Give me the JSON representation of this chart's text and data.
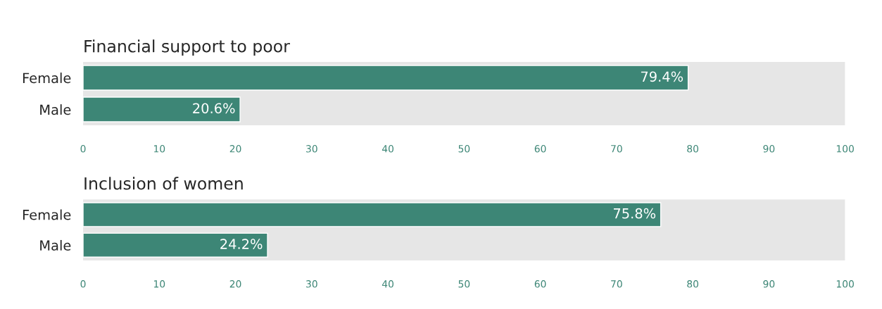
{
  "chart_data": [
    {
      "type": "bar",
      "orientation": "horizontal",
      "title": "Financial support to poor",
      "categories": [
        "Female",
        "Male"
      ],
      "values": [
        79.4,
        20.6
      ],
      "value_labels": [
        "79.4%",
        "20.6%"
      ],
      "color": "#3d8676",
      "xlim": [
        0,
        100
      ],
      "xticks": [
        0,
        10,
        20,
        30,
        40,
        50,
        60,
        70,
        80,
        90,
        100
      ],
      "bands": [
        {
          "axis": "x",
          "from": 0,
          "to": 100,
          "color": "#e6e6e6"
        }
      ],
      "grid": false,
      "legend": false
    },
    {
      "type": "bar",
      "orientation": "horizontal",
      "title": "Inclusion of women",
      "categories": [
        "Female",
        "Male"
      ],
      "values": [
        75.8,
        24.2
      ],
      "value_labels": [
        "75.8%",
        "24.2%"
      ],
      "color": "#3d8676",
      "xlim": [
        0,
        100
      ],
      "xticks": [
        0,
        10,
        20,
        30,
        40,
        50,
        60,
        70,
        80,
        90,
        100
      ],
      "bands": [
        {
          "axis": "x",
          "from": 0,
          "to": 100,
          "color": "#e6e6e6"
        }
      ],
      "grid": false,
      "legend": false
    }
  ]
}
